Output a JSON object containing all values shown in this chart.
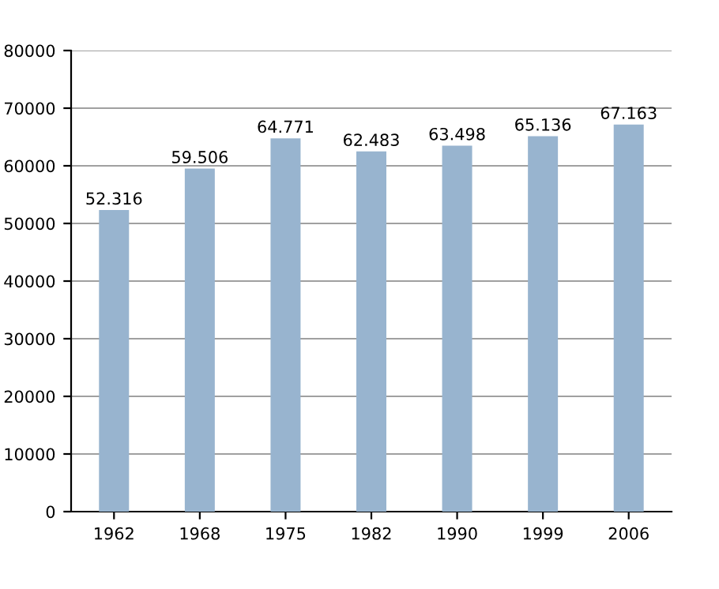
{
  "chart_data": {
    "type": "bar",
    "categories": [
      "1962",
      "1968",
      "1975",
      "1982",
      "1990",
      "1999",
      "2006"
    ],
    "values": [
      52316,
      59506,
      64771,
      62483,
      63498,
      65136,
      67163
    ],
    "value_labels": [
      "52.316",
      "59.506",
      "64.771",
      "62.483",
      "63.498",
      "65.136",
      "67.163"
    ],
    "color": "#98b4cf",
    "ylim": [
      0,
      80000
    ],
    "yticks": [
      0,
      10000,
      20000,
      30000,
      40000,
      50000,
      60000,
      70000,
      80000
    ],
    "grid": "y",
    "legend": false
  }
}
